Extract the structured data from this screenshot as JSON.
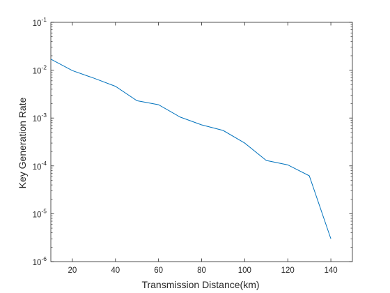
{
  "chart_data": {
    "type": "line",
    "title": "",
    "xlabel": "Transmission Distance(km)",
    "ylabel": "Key Generation Rate",
    "xlim": [
      10,
      150
    ],
    "ylim": [
      1e-06,
      0.1
    ],
    "yscale": "log",
    "grid": false,
    "box": true,
    "x_ticks": [
      20,
      40,
      60,
      80,
      100,
      120,
      140
    ],
    "y_tick_exponents": [
      -6,
      -5,
      -4,
      -3,
      -2,
      -1
    ],
    "y_tick_base": "10",
    "colors": {
      "line": "#0072BD",
      "axes": "#262626",
      "background": "#ffffff"
    },
    "series": [
      {
        "x": [
          10,
          20,
          30,
          40,
          50,
          60,
          70,
          80,
          90,
          100,
          110,
          120,
          130,
          140
        ],
        "values": [
          0.017,
          0.0098,
          0.0068,
          0.0046,
          0.0023,
          0.0019,
          0.00105,
          0.00072,
          0.00055,
          0.0003,
          0.00013,
          0.000105,
          6.2e-05,
          3e-06
        ]
      }
    ]
  }
}
